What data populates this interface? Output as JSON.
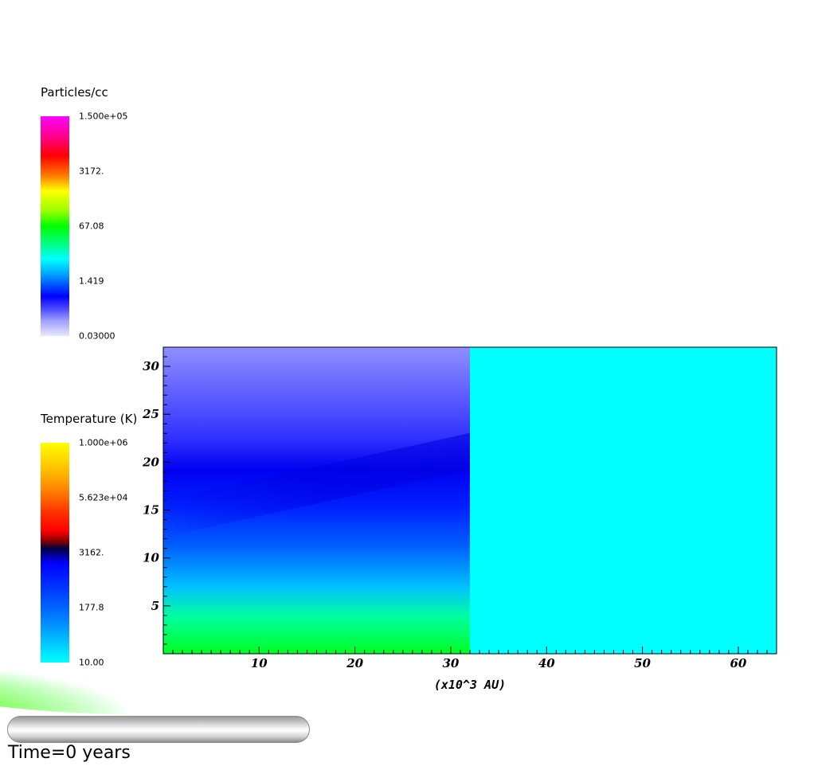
{
  "colorbars": {
    "density": {
      "title": "Particles/cc",
      "ticks": [
        "1.500e+05",
        "3172.",
        "67.08",
        "1.419",
        "0.03000"
      ],
      "scale": "log",
      "range": [
        0.03,
        150000
      ]
    },
    "temperature": {
      "title": "Temperature (K)",
      "ticks": [
        "1.000e+06",
        "5.623e+04",
        "3162.",
        "177.8",
        "10.00"
      ],
      "scale": "log",
      "range": [
        10,
        1000000
      ]
    }
  },
  "time_label": "Time=0 years",
  "colors": {
    "background_region": "#00ffff",
    "frame": "#000000"
  },
  "chart_data": {
    "type": "heatmap",
    "title": "",
    "xlabel": "(x10^3 AU)",
    "ylabel": "",
    "xlim": [
      0,
      64
    ],
    "ylim": [
      0,
      32
    ],
    "x_ticks": [
      "10",
      "20",
      "30",
      "40",
      "50",
      "60"
    ],
    "y_ticks": [
      "5",
      "10",
      "15",
      "20",
      "25",
      "30"
    ],
    "grid": false,
    "density_field_extent": [
      [
        0,
        32
      ],
      [
        0,
        32
      ]
    ],
    "uniform_region_extent": [
      [
        32,
        64
      ],
      [
        0,
        32
      ]
    ],
    "uniform_region_color": "cyan"
  }
}
